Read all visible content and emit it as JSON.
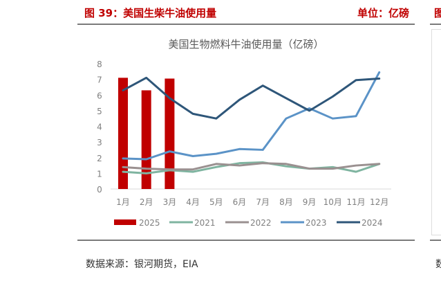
{
  "header": {
    "figure_title": "图 39：美国生柴牛油使用量",
    "unit": "单位：亿磅"
  },
  "footer": {
    "source": "数据来源：银河期货，EIA"
  },
  "neighbor_panel": {
    "title_fragment": "图",
    "source_fragment": "数"
  },
  "colors": {
    "accent_red": "#c00000",
    "series_2025": "#c00000",
    "series_2021": "#7fb4a0",
    "series_2022": "#9a9090",
    "series_2023": "#5b93c7",
    "series_2024": "#2e5679",
    "rule": "#7a7a7a",
    "axis_text": "#7f7f7f"
  },
  "chart_data": {
    "type": "bar+line",
    "title": "美国生物燃料牛油使用量（亿磅）",
    "xlabel": "",
    "ylabel": "",
    "ylim": [
      0,
      8
    ],
    "yticks": [
      0,
      1,
      2,
      3,
      4,
      5,
      6,
      7,
      8
    ],
    "grid": false,
    "legend_position": "bottom",
    "categories": [
      "1月",
      "2月",
      "3月",
      "4月",
      "5月",
      "6月",
      "7月",
      "8月",
      "9月",
      "10月",
      "11月",
      "12月"
    ],
    "series": [
      {
        "name": "2025",
        "type": "bar",
        "color": "#c00000",
        "values": [
          7.1,
          6.3,
          7.05,
          null,
          null,
          null,
          null,
          null,
          null,
          null,
          null,
          null
        ]
      },
      {
        "name": "2021",
        "type": "line",
        "color": "#7fb4a0",
        "values": [
          1.1,
          1.0,
          1.2,
          1.1,
          1.4,
          1.65,
          1.7,
          1.45,
          1.3,
          1.4,
          1.1,
          1.6
        ]
      },
      {
        "name": "2022",
        "type": "line",
        "color": "#9a9090",
        "values": [
          1.4,
          1.3,
          1.25,
          1.25,
          1.6,
          1.5,
          1.65,
          1.6,
          1.3,
          1.3,
          1.5,
          1.6
        ]
      },
      {
        "name": "2023",
        "type": "line",
        "color": "#5b93c7",
        "values": [
          1.95,
          1.9,
          2.4,
          2.1,
          2.25,
          2.55,
          2.5,
          4.5,
          5.15,
          4.5,
          4.65,
          7.45
        ]
      },
      {
        "name": "2024",
        "type": "line",
        "color": "#2e5679",
        "values": [
          6.3,
          7.1,
          5.8,
          4.8,
          4.5,
          5.7,
          6.6,
          5.8,
          5.0,
          5.9,
          6.95,
          7.05
        ]
      }
    ]
  }
}
